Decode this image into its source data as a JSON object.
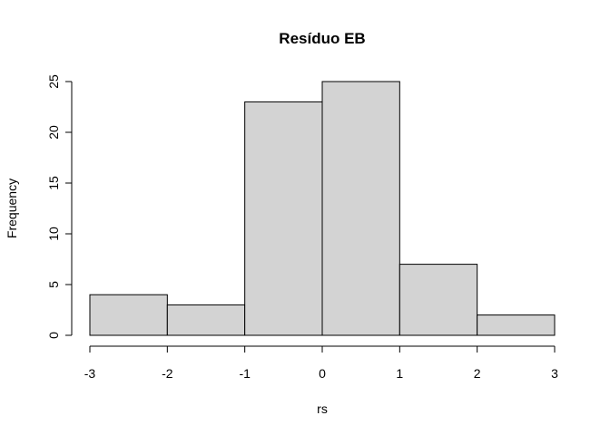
{
  "chart_data": {
    "type": "bar",
    "title": "Resíduo  EB",
    "xlabel": "rs",
    "ylabel": "Frequency",
    "bins": [
      {
        "from": -3,
        "to": -2,
        "count": 4
      },
      {
        "from": -2,
        "to": -1,
        "count": 3
      },
      {
        "from": -1,
        "to": 0,
        "count": 23
      },
      {
        "from": 0,
        "to": 1,
        "count": 25
      },
      {
        "from": 1,
        "to": 2,
        "count": 7
      },
      {
        "from": 2,
        "to": 3,
        "count": 2
      }
    ],
    "xlim": [
      -3,
      3
    ],
    "ylim": [
      0,
      25
    ],
    "xticks": [
      "-3",
      "-2",
      "-1",
      "0",
      "1",
      "2",
      "3"
    ],
    "yticks": [
      "0",
      "5",
      "10",
      "15",
      "20",
      "25"
    ],
    "bar_color": "#d3d3d3",
    "grid": false
  }
}
